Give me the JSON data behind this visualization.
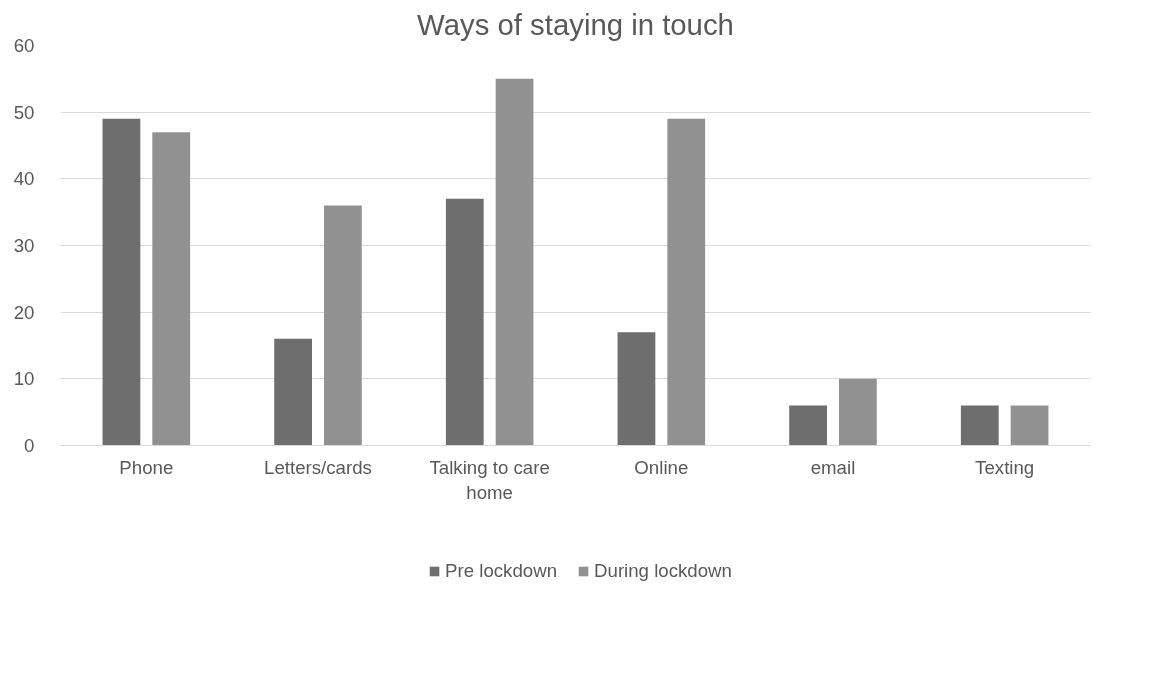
{
  "chart_data": {
    "type": "bar",
    "title": "Ways of staying in touch",
    "categories": [
      "Phone",
      "Letters/cards",
      "Talking to care home",
      "Online",
      "email",
      "Texting"
    ],
    "series": [
      {
        "name": "Pre lockdown",
        "color": "#6e6e6e",
        "values": [
          49,
          16,
          37,
          17,
          6,
          6
        ]
      },
      {
        "name": "During lockdown",
        "color": "#919191",
        "values": [
          47,
          36,
          55,
          49,
          10,
          6
        ]
      }
    ],
    "ylim": [
      0,
      60
    ],
    "yticks": [
      0,
      10,
      20,
      30,
      40,
      50,
      60
    ],
    "grid": "y",
    "legend": "bottom"
  }
}
